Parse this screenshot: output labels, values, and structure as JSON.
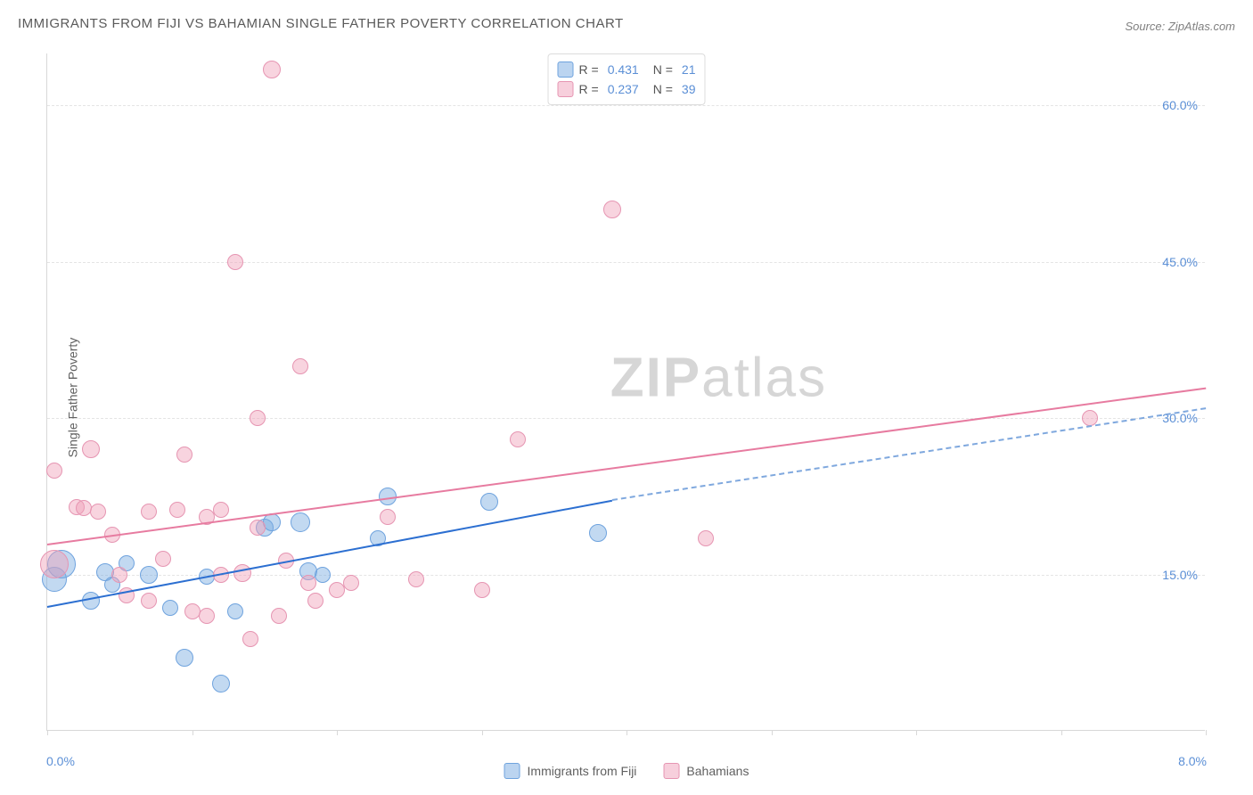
{
  "title": "IMMIGRANTS FROM FIJI VS BAHAMIAN SINGLE FATHER POVERTY CORRELATION CHART",
  "source": "Source: ZipAtlas.com",
  "ylabel": "Single Father Poverty",
  "watermark_zip": "ZIP",
  "watermark_atlas": "atlas",
  "chart": {
    "type": "scatter",
    "xlim": [
      0.0,
      8.0
    ],
    "ylim": [
      0.0,
      65.0
    ],
    "ytick_values": [
      15.0,
      30.0,
      45.0,
      60.0
    ],
    "ytick_labels": [
      "15.0%",
      "30.0%",
      "45.0%",
      "60.0%"
    ],
    "xtick_left": "0.0%",
    "xtick_right": "8.0%",
    "xtick_marks": [
      0.0,
      1.0,
      2.0,
      3.0,
      4.0,
      5.0,
      6.0,
      7.0,
      8.0
    ],
    "background_color": "#ffffff",
    "grid_color": "#e4e4e4",
    "axis_color": "#d8d8d8",
    "text_color": "#606060",
    "accent_blue": "#5b8fd6",
    "series": [
      {
        "name": "Immigrants from Fiji",
        "color_fill": "rgba(120,170,225,0.45)",
        "color_stroke": "#6fa3de",
        "points": [
          {
            "x": 0.05,
            "y": 14.5,
            "r": 14
          },
          {
            "x": 0.1,
            "y": 16.0,
            "r": 16
          },
          {
            "x": 0.3,
            "y": 12.5,
            "r": 10
          },
          {
            "x": 0.4,
            "y": 15.2,
            "r": 10
          },
          {
            "x": 0.45,
            "y": 14.0,
            "r": 9
          },
          {
            "x": 0.55,
            "y": 16.1,
            "r": 9
          },
          {
            "x": 0.7,
            "y": 15.0,
            "r": 10
          },
          {
            "x": 0.85,
            "y": 11.8,
            "r": 9
          },
          {
            "x": 0.95,
            "y": 7.0,
            "r": 10
          },
          {
            "x": 1.1,
            "y": 14.8,
            "r": 9
          },
          {
            "x": 1.2,
            "y": 4.5,
            "r": 10
          },
          {
            "x": 1.3,
            "y": 11.5,
            "r": 9
          },
          {
            "x": 1.5,
            "y": 19.5,
            "r": 10
          },
          {
            "x": 1.55,
            "y": 20.0,
            "r": 10
          },
          {
            "x": 1.75,
            "y": 20.0,
            "r": 11
          },
          {
            "x": 1.8,
            "y": 15.3,
            "r": 10
          },
          {
            "x": 1.9,
            "y": 15.0,
            "r": 9
          },
          {
            "x": 2.28,
            "y": 18.5,
            "r": 9
          },
          {
            "x": 2.35,
            "y": 22.5,
            "r": 10
          },
          {
            "x": 3.05,
            "y": 22.0,
            "r": 10
          },
          {
            "x": 3.8,
            "y": 19.0,
            "r": 10
          }
        ],
        "trend": {
          "x1": 0.0,
          "y1": 12.0,
          "x2": 3.9,
          "y2": 22.2,
          "ext_x": 8.0,
          "ext_y": 31.0,
          "color_solid": "#2c6fd1",
          "color_dash": "#7fa8de"
        }
      },
      {
        "name": "Bahamians",
        "color_fill": "rgba(240,160,185,0.45)",
        "color_stroke": "#e695b2",
        "points": [
          {
            "x": 0.05,
            "y": 16.0,
            "r": 16
          },
          {
            "x": 0.05,
            "y": 25.0,
            "r": 9
          },
          {
            "x": 0.2,
            "y": 21.5,
            "r": 9
          },
          {
            "x": 0.25,
            "y": 21.4,
            "r": 9
          },
          {
            "x": 0.3,
            "y": 27.0,
            "r": 10
          },
          {
            "x": 0.35,
            "y": 21.0,
            "r": 9
          },
          {
            "x": 0.45,
            "y": 18.8,
            "r": 9
          },
          {
            "x": 0.5,
            "y": 15.0,
            "r": 9
          },
          {
            "x": 0.55,
            "y": 13.0,
            "r": 9
          },
          {
            "x": 0.7,
            "y": 21.0,
            "r": 9
          },
          {
            "x": 0.7,
            "y": 12.5,
            "r": 9
          },
          {
            "x": 0.8,
            "y": 16.5,
            "r": 9
          },
          {
            "x": 0.9,
            "y": 21.2,
            "r": 9
          },
          {
            "x": 0.95,
            "y": 26.5,
            "r": 9
          },
          {
            "x": 1.0,
            "y": 11.5,
            "r": 9
          },
          {
            "x": 1.1,
            "y": 11.0,
            "r": 9
          },
          {
            "x": 1.1,
            "y": 20.5,
            "r": 9
          },
          {
            "x": 1.2,
            "y": 21.2,
            "r": 9
          },
          {
            "x": 1.2,
            "y": 15.0,
            "r": 9
          },
          {
            "x": 1.3,
            "y": 45.0,
            "r": 9
          },
          {
            "x": 1.35,
            "y": 15.1,
            "r": 10
          },
          {
            "x": 1.4,
            "y": 8.8,
            "r": 9
          },
          {
            "x": 1.45,
            "y": 19.5,
            "r": 9
          },
          {
            "x": 1.45,
            "y": 30.0,
            "r": 9
          },
          {
            "x": 1.55,
            "y": 63.5,
            "r": 10
          },
          {
            "x": 1.6,
            "y": 11.0,
            "r": 9
          },
          {
            "x": 1.65,
            "y": 16.3,
            "r": 9
          },
          {
            "x": 1.75,
            "y": 35.0,
            "r": 9
          },
          {
            "x": 1.8,
            "y": 14.2,
            "r": 9
          },
          {
            "x": 1.85,
            "y": 12.5,
            "r": 9
          },
          {
            "x": 2.0,
            "y": 13.5,
            "r": 9
          },
          {
            "x": 2.1,
            "y": 14.2,
            "r": 9
          },
          {
            "x": 2.35,
            "y": 20.5,
            "r": 9
          },
          {
            "x": 2.55,
            "y": 14.5,
            "r": 9
          },
          {
            "x": 3.0,
            "y": 13.5,
            "r": 9
          },
          {
            "x": 3.25,
            "y": 28.0,
            "r": 9
          },
          {
            "x": 3.9,
            "y": 50.0,
            "r": 10
          },
          {
            "x": 4.55,
            "y": 18.5,
            "r": 9
          },
          {
            "x": 7.2,
            "y": 30.0,
            "r": 9
          }
        ],
        "trend": {
          "x1": 0.0,
          "y1": 18.0,
          "x2": 8.0,
          "y2": 33.0,
          "color_solid": "#e77ba0"
        }
      }
    ]
  },
  "legend": {
    "rows": [
      {
        "swatch": "blue",
        "r_label": "R =",
        "r_val": "0.431",
        "n_label": "N =",
        "n_val": "21"
      },
      {
        "swatch": "pink",
        "r_label": "R =",
        "r_val": "0.237",
        "n_label": "N =",
        "n_val": "39"
      }
    ]
  },
  "bottom_legend": [
    {
      "swatch": "blue",
      "label": "Immigrants from Fiji"
    },
    {
      "swatch": "pink",
      "label": "Bahamians"
    }
  ]
}
